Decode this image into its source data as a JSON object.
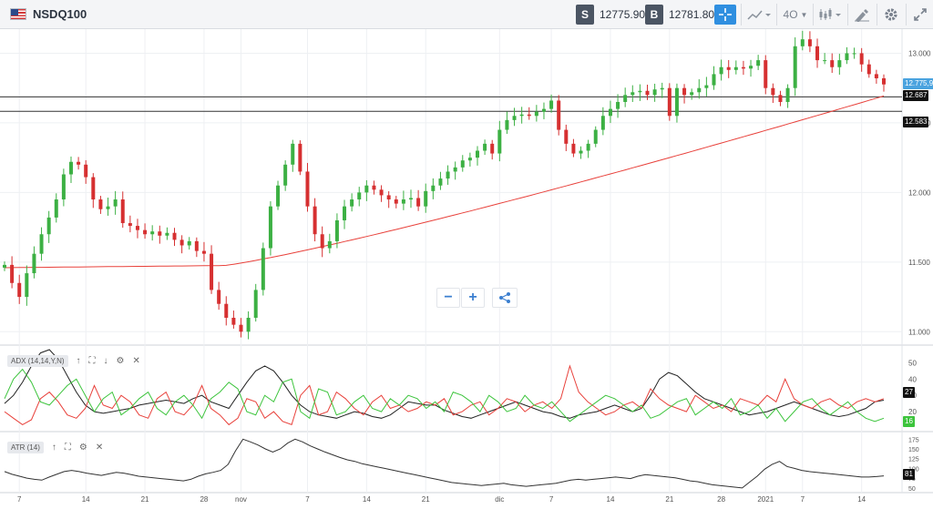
{
  "toolbar": {
    "symbol": "NSDQ100",
    "sell_label": "S",
    "sell_price": "12775.90",
    "buy_label": "B",
    "buy_price": "12781.80",
    "interval": "4O",
    "icons": [
      "flag-us-icon",
      "crosshair-icon",
      "chart-type-icon",
      "candles-icon",
      "draw-icon",
      "gear-icon",
      "fullscreen-icon"
    ]
  },
  "controls": {
    "zoom_out": "−",
    "zoom_in": "+",
    "share_icon": "share-icon"
  },
  "chart_data": {
    "type": "candlestick",
    "price_axis": {
      "ticks": [
        11000,
        11500,
        12000,
        12500,
        13000
      ],
      "tick_labels": [
        "11.000",
        "11.500",
        "12.000",
        "12.500",
        "13.000"
      ],
      "ylim": [
        10930,
        13160
      ]
    },
    "x_ticks": [
      {
        "label": "7",
        "bar": 2
      },
      {
        "label": "14",
        "bar": 11
      },
      {
        "label": "21",
        "bar": 19
      },
      {
        "label": "28",
        "bar": 27
      },
      {
        "label": "nov",
        "bar": 32
      },
      {
        "label": "7",
        "bar": 41
      },
      {
        "label": "14",
        "bar": 49
      },
      {
        "label": "21",
        "bar": 57
      },
      {
        "label": "dic",
        "bar": 67
      },
      {
        "label": "7",
        "bar": 74
      },
      {
        "label": "14",
        "bar": 82
      },
      {
        "label": "21",
        "bar": 90
      },
      {
        "label": "28",
        "bar": 97
      },
      {
        "label": "2021",
        "bar": 103
      },
      {
        "label": "7",
        "bar": 108
      },
      {
        "label": "14",
        "bar": 116
      }
    ],
    "bars_count": 120,
    "closes": [
      11480,
      11350,
      11250,
      11420,
      11560,
      11700,
      11820,
      11950,
      12130,
      12220,
      12200,
      12110,
      11950,
      11880,
      11900,
      11950,
      11780,
      11760,
      11730,
      11700,
      11720,
      11690,
      11710,
      11660,
      11620,
      11650,
      11580,
      11560,
      11300,
      11200,
      11100,
      11050,
      11000,
      11100,
      11300,
      11600,
      11900,
      12050,
      12200,
      12350,
      12150,
      11900,
      11700,
      11600,
      11650,
      11800,
      11900,
      11950,
      12000,
      12050,
      12020,
      11980,
      11950,
      11920,
      11950,
      11960,
      11900,
      12010,
      12050,
      12100,
      12150,
      12180,
      12230,
      12250,
      12300,
      12350,
      12280,
      12450,
      12520,
      12550,
      12560,
      12550,
      12580,
      12600,
      12660,
      12450,
      12350,
      12280,
      12300,
      12350,
      12450,
      12550,
      12600,
      12650,
      12700,
      12720,
      12730,
      12700,
      12740,
      12750,
      12550,
      12750,
      12700,
      12720,
      12750,
      12770,
      12850,
      12900,
      12880,
      12900,
      12890,
      12910,
      12950,
      12750,
      12700,
      12650,
      12750,
      13050,
      13100,
      13050,
      12950,
      12950,
      12900,
      12950,
      13000,
      13000,
      12920,
      12850,
      12820,
      12776
    ],
    "series": [
      {
        "name": "sma",
        "color": "#e8403a",
        "from": 11460,
        "to": 12690
      },
      {
        "name": "support_1",
        "value": 12687,
        "label": "12.687"
      },
      {
        "name": "support_2",
        "value": 12583,
        "label": "12.583"
      }
    ],
    "last_price": {
      "value": 12775.9,
      "label": "12.775,90"
    },
    "indicators": [
      {
        "name": "ADX (14,14,Y,N)",
        "ticks": [
          "50",
          "40",
          "30",
          "20"
        ],
        "adx": [
          25,
          30,
          38,
          48,
          56,
          58,
          52,
          42,
          32,
          24,
          20,
          19,
          20,
          21,
          22,
          24,
          25,
          26,
          27,
          26,
          25,
          28,
          30,
          26,
          24,
          22,
          30,
          38,
          45,
          48,
          45,
          38,
          30,
          24,
          20,
          18,
          17,
          16,
          18,
          20,
          19,
          17,
          16,
          18,
          22,
          26,
          25,
          24,
          24,
          21,
          19,
          17,
          16,
          18,
          20,
          22,
          24,
          26,
          24,
          22,
          20,
          19,
          17,
          16,
          18,
          19,
          20,
          22,
          24,
          22,
          20,
          22,
          30,
          40,
          44,
          42,
          37,
          32,
          28,
          26,
          24,
          22,
          20,
          18,
          19,
          20,
          22,
          24,
          26,
          24,
          22,
          20,
          18,
          17,
          18,
          20,
          22,
          26,
          27
        ],
        "dip": [
          20,
          16,
          12,
          15,
          28,
          32,
          26,
          18,
          16,
          22,
          36,
          24,
          22,
          30,
          26,
          18,
          16,
          28,
          32,
          20,
          18,
          24,
          36,
          22,
          18,
          12,
          16,
          28,
          26,
          16,
          20,
          14,
          12,
          30,
          36,
          18,
          20,
          32,
          28,
          22,
          18,
          26,
          30,
          22,
          24,
          20,
          22,
          26,
          24,
          28,
          18,
          20,
          24,
          26,
          18,
          22,
          28,
          26,
          20,
          24,
          26,
          22,
          28,
          48,
          32,
          26,
          22,
          18,
          20,
          24,
          26,
          22,
          34,
          28,
          24,
          22,
          20,
          30,
          26,
          22,
          24,
          20,
          28,
          26,
          24,
          30,
          26,
          40,
          28,
          24,
          22,
          26,
          28,
          24,
          22,
          26,
          28,
          26,
          28
        ],
        "dim": [
          28,
          40,
          46,
          38,
          26,
          24,
          30,
          36,
          40,
          30,
          20,
          28,
          32,
          18,
          22,
          28,
          32,
          22,
          18,
          26,
          30,
          24,
          16,
          28,
          32,
          38,
          34,
          20,
          18,
          30,
          26,
          38,
          40,
          20,
          16,
          34,
          32,
          18,
          20,
          26,
          30,
          22,
          20,
          28,
          24,
          30,
          28,
          22,
          26,
          20,
          32,
          30,
          26,
          20,
          30,
          26,
          20,
          22,
          30,
          24,
          22,
          26,
          20,
          14,
          18,
          22,
          26,
          30,
          28,
          24,
          20,
          24,
          16,
          18,
          22,
          26,
          28,
          18,
          22,
          26,
          22,
          28,
          18,
          20,
          24,
          16,
          22,
          14,
          20,
          26,
          28,
          22,
          18,
          22,
          26,
          20,
          16,
          14,
          16
        ],
        "adx_last": "27",
        "dim_last": "16"
      },
      {
        "name": "ATR (14)",
        "ticks": [
          "175",
          "150",
          "125",
          "100",
          "75",
          "50"
        ],
        "atr": [
          92,
          85,
          80,
          75,
          72,
          70,
          78,
          85,
          92,
          95,
          92,
          88,
          85,
          82,
          86,
          90,
          88,
          84,
          80,
          78,
          76,
          74,
          72,
          70,
          68,
          72,
          80,
          86,
          90,
          95,
          110,
          145,
          175,
          168,
          160,
          150,
          142,
          150,
          165,
          175,
          168,
          158,
          150,
          142,
          135,
          128,
          122,
          118,
          112,
          108,
          104,
          100,
          96,
          92,
          88,
          84,
          80,
          76,
          72,
          68,
          64,
          62,
          60,
          58,
          56,
          58,
          60,
          62,
          58,
          56,
          54,
          56,
          58,
          60,
          62,
          66,
          70,
          72,
          70,
          72,
          74,
          76,
          78,
          76,
          74,
          80,
          84,
          82,
          80,
          78,
          76,
          72,
          68,
          66,
          62,
          58,
          56,
          54,
          52,
          50,
          65,
          80,
          98,
          110,
          118,
          105,
          100,
          95,
          92,
          90,
          88,
          86,
          84,
          82,
          80,
          78,
          78,
          79,
          81
        ],
        "atr_last": "81"
      }
    ]
  }
}
